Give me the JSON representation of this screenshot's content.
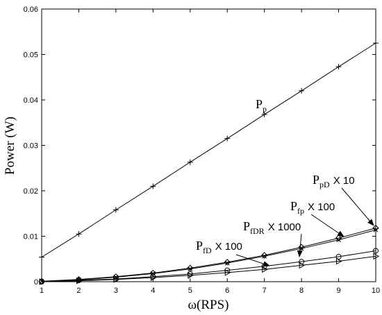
{
  "chart_data": {
    "type": "line",
    "xlabel": "ω(RPS)",
    "ylabel": "Power (W)",
    "xlim": [
      1,
      10
    ],
    "ylim": [
      0,
      0.06
    ],
    "x": [
      1,
      2,
      3,
      4,
      5,
      6,
      7,
      8,
      9,
      10
    ],
    "x_ticks": [
      "1",
      "2",
      "3",
      "4",
      "5",
      "6",
      "7",
      "8",
      "9",
      "10"
    ],
    "y_ticks": [
      {
        "value": 0,
        "label": "0"
      },
      {
        "value": 0.01,
        "label": "0.01"
      },
      {
        "value": 0.02,
        "label": "0.02"
      },
      {
        "value": 0.03,
        "label": "0.03"
      },
      {
        "value": 0.04,
        "label": "0.04"
      },
      {
        "value": 0.05,
        "label": "0.05"
      },
      {
        "value": 0.06,
        "label": "0.06"
      }
    ],
    "grid": false,
    "series": [
      {
        "marker": "plus",
        "values": [
          0.0054,
          0.0105,
          0.0158,
          0.021,
          0.0263,
          0.0315,
          0.0368,
          0.042,
          0.0473,
          0.0525
        ]
      },
      {
        "marker": "diamond",
        "values": [
          0.0001,
          0.0005,
          0.0011,
          0.0019,
          0.003,
          0.0043,
          0.0058,
          0.0076,
          0.0096,
          0.0118
        ]
      },
      {
        "marker": "x",
        "values": [
          0.0001,
          0.0004,
          0.001,
          0.0018,
          0.0028,
          0.0041,
          0.0056,
          0.0073,
          0.0092,
          0.0114
        ]
      },
      {
        "marker": "circle",
        "values": [
          0.0,
          0.0003,
          0.0006,
          0.0011,
          0.0017,
          0.0025,
          0.0034,
          0.0044,
          0.0055,
          0.0068
        ]
      },
      {
        "marker": "triangle",
        "values": [
          0.0,
          0.0002,
          0.0005,
          0.0009,
          0.0014,
          0.002,
          0.0027,
          0.0036,
          0.0045,
          0.0056
        ]
      }
    ],
    "annotations": [
      {
        "main": "P",
        "sub": "p",
        "mult": ""
      },
      {
        "main": "P",
        "sub": "pD",
        "mult": "X 10"
      },
      {
        "main": "P",
        "sub": "fp",
        "mult": "X 100"
      },
      {
        "main": "P",
        "sub": "fDR",
        "mult": "X 1000"
      },
      {
        "main": "P",
        "sub": "fD",
        "mult": "X 100"
      }
    ]
  }
}
